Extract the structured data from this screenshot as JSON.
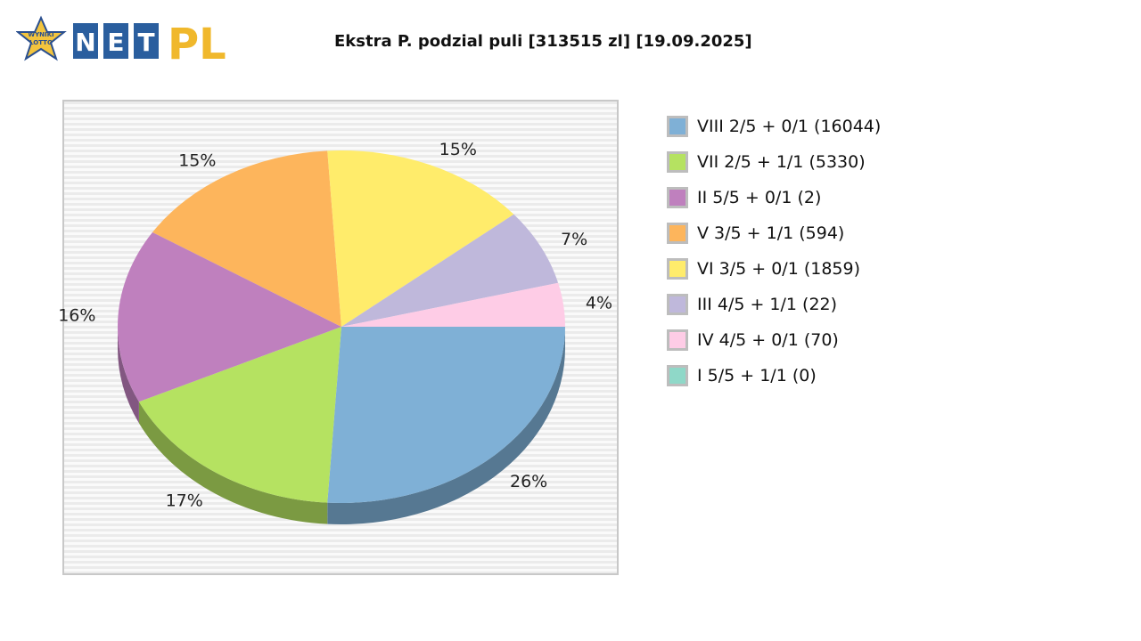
{
  "logo": {
    "badge_text_1": "WYNIKI",
    "badge_text_2": "LOTTO",
    "letters": [
      "N",
      "E",
      "T"
    ],
    "suffix": "PL"
  },
  "chart_data": {
    "type": "pie",
    "title": "Ekstra P. podzial puli [313515 zl] [19.09.2025]",
    "slices": [
      {
        "label": "VIII 2/5 + 0/1 (16044)",
        "percent": 26,
        "pct_label": "26%",
        "color": "#7fb0d6"
      },
      {
        "label": "VII 2/5 + 1/1 (5330)",
        "percent": 17,
        "pct_label": "17%",
        "color": "#b5e261"
      },
      {
        "label": "II 5/5 + 0/1 (2)",
        "percent": 16,
        "pct_label": "16%",
        "color": "#bf80be"
      },
      {
        "label": "V 3/5 + 1/1 (594)",
        "percent": 15,
        "pct_label": "15%",
        "color": "#fdb55c"
      },
      {
        "label": "VI 3/5 + 0/1 (1859)",
        "percent": 15,
        "pct_label": "15%",
        "color": "#ffec6b"
      },
      {
        "label": "III 4/5 + 1/1 (22)",
        "percent": 7,
        "pct_label": "7%",
        "color": "#bfb8db"
      },
      {
        "label": "IV 4/5 + 0/1 (70)",
        "percent": 4,
        "pct_label": "4%",
        "color": "#fecce6"
      },
      {
        "label": "I 5/5 + 1/1 (0)",
        "percent": 0,
        "pct_label": "",
        "color": "#8fd8c8"
      }
    ],
    "legend_position": "right",
    "three_d": true
  }
}
